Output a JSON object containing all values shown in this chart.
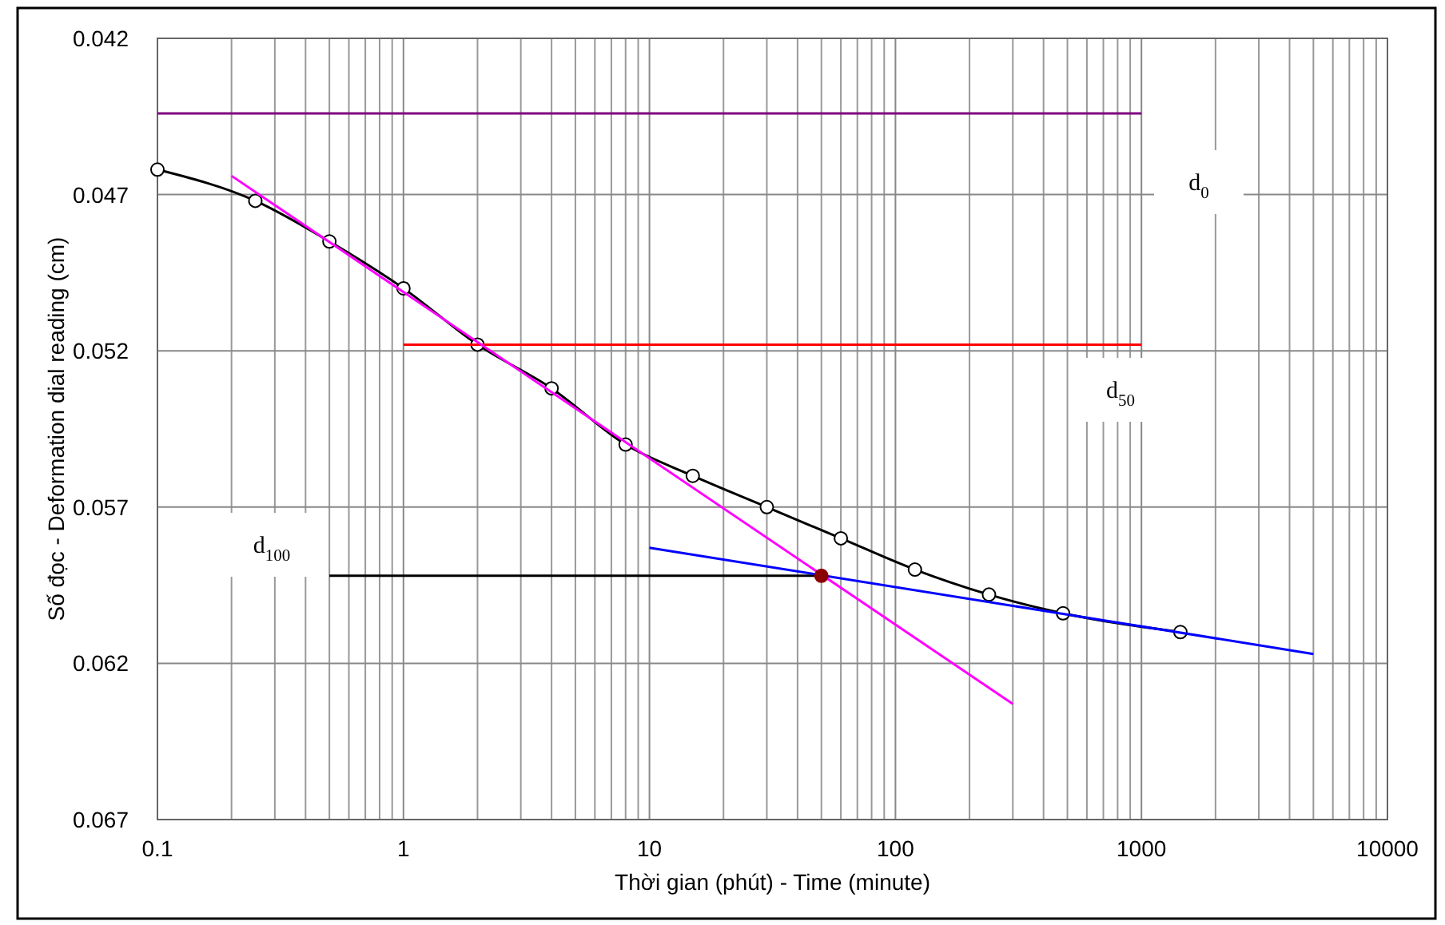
{
  "chart_data": {
    "type": "line",
    "xlabel": "Thời gian (phút) - Time (minute)",
    "ylabel": "Số đọc - Deformation dial reading (cm)",
    "log": "x",
    "grid": true,
    "xlim": [
      0.1,
      10000
    ],
    "xticks": [
      0.1,
      1,
      10,
      100,
      1000,
      10000
    ],
    "ylim": [
      0.067,
      0.042
    ],
    "yticks": [
      0.042,
      0.047,
      0.052,
      0.057,
      0.062,
      0.067
    ],
    "series": [
      {
        "color": "#000000",
        "marker": "circle",
        "x": [
          0.1,
          0.25,
          0.5,
          1,
          2,
          4,
          8,
          15,
          30,
          60,
          120,
          240,
          480,
          1440
        ],
        "values": [
          0.0462,
          0.0472,
          0.0485,
          0.05,
          0.0518,
          0.0532,
          0.055,
          0.056,
          0.057,
          0.058,
          0.059,
          0.0598,
          0.0604,
          0.061
        ]
      },
      {
        "color": "#800080",
        "marker": "none",
        "x": [
          0.1,
          1000
        ],
        "values": [
          0.0444,
          0.0444
        ]
      },
      {
        "color": "#ff0000",
        "marker": "none",
        "x": [
          1,
          1000
        ],
        "values": [
          0.0518,
          0.0518
        ]
      },
      {
        "color": "#000000",
        "marker": "none",
        "x": [
          0.5,
          50
        ],
        "values": [
          0.0592,
          0.0592
        ]
      },
      {
        "color": "#ff00ff",
        "marker": "none",
        "x": [
          0.2,
          300
        ],
        "values": [
          0.0464,
          0.0633
        ]
      },
      {
        "color": "#0000ff",
        "marker": "none",
        "x": [
          10,
          5000
        ],
        "values": [
          0.0583,
          0.0617
        ]
      },
      {
        "type": "scatter",
        "color": "#8b0000",
        "marker": "circle",
        "x": [
          50
        ],
        "values": [
          0.0592
        ]
      }
    ],
    "annotations": [
      "d$_{0}$",
      "d$_{50}$",
      "d$_{100}$"
    ]
  }
}
